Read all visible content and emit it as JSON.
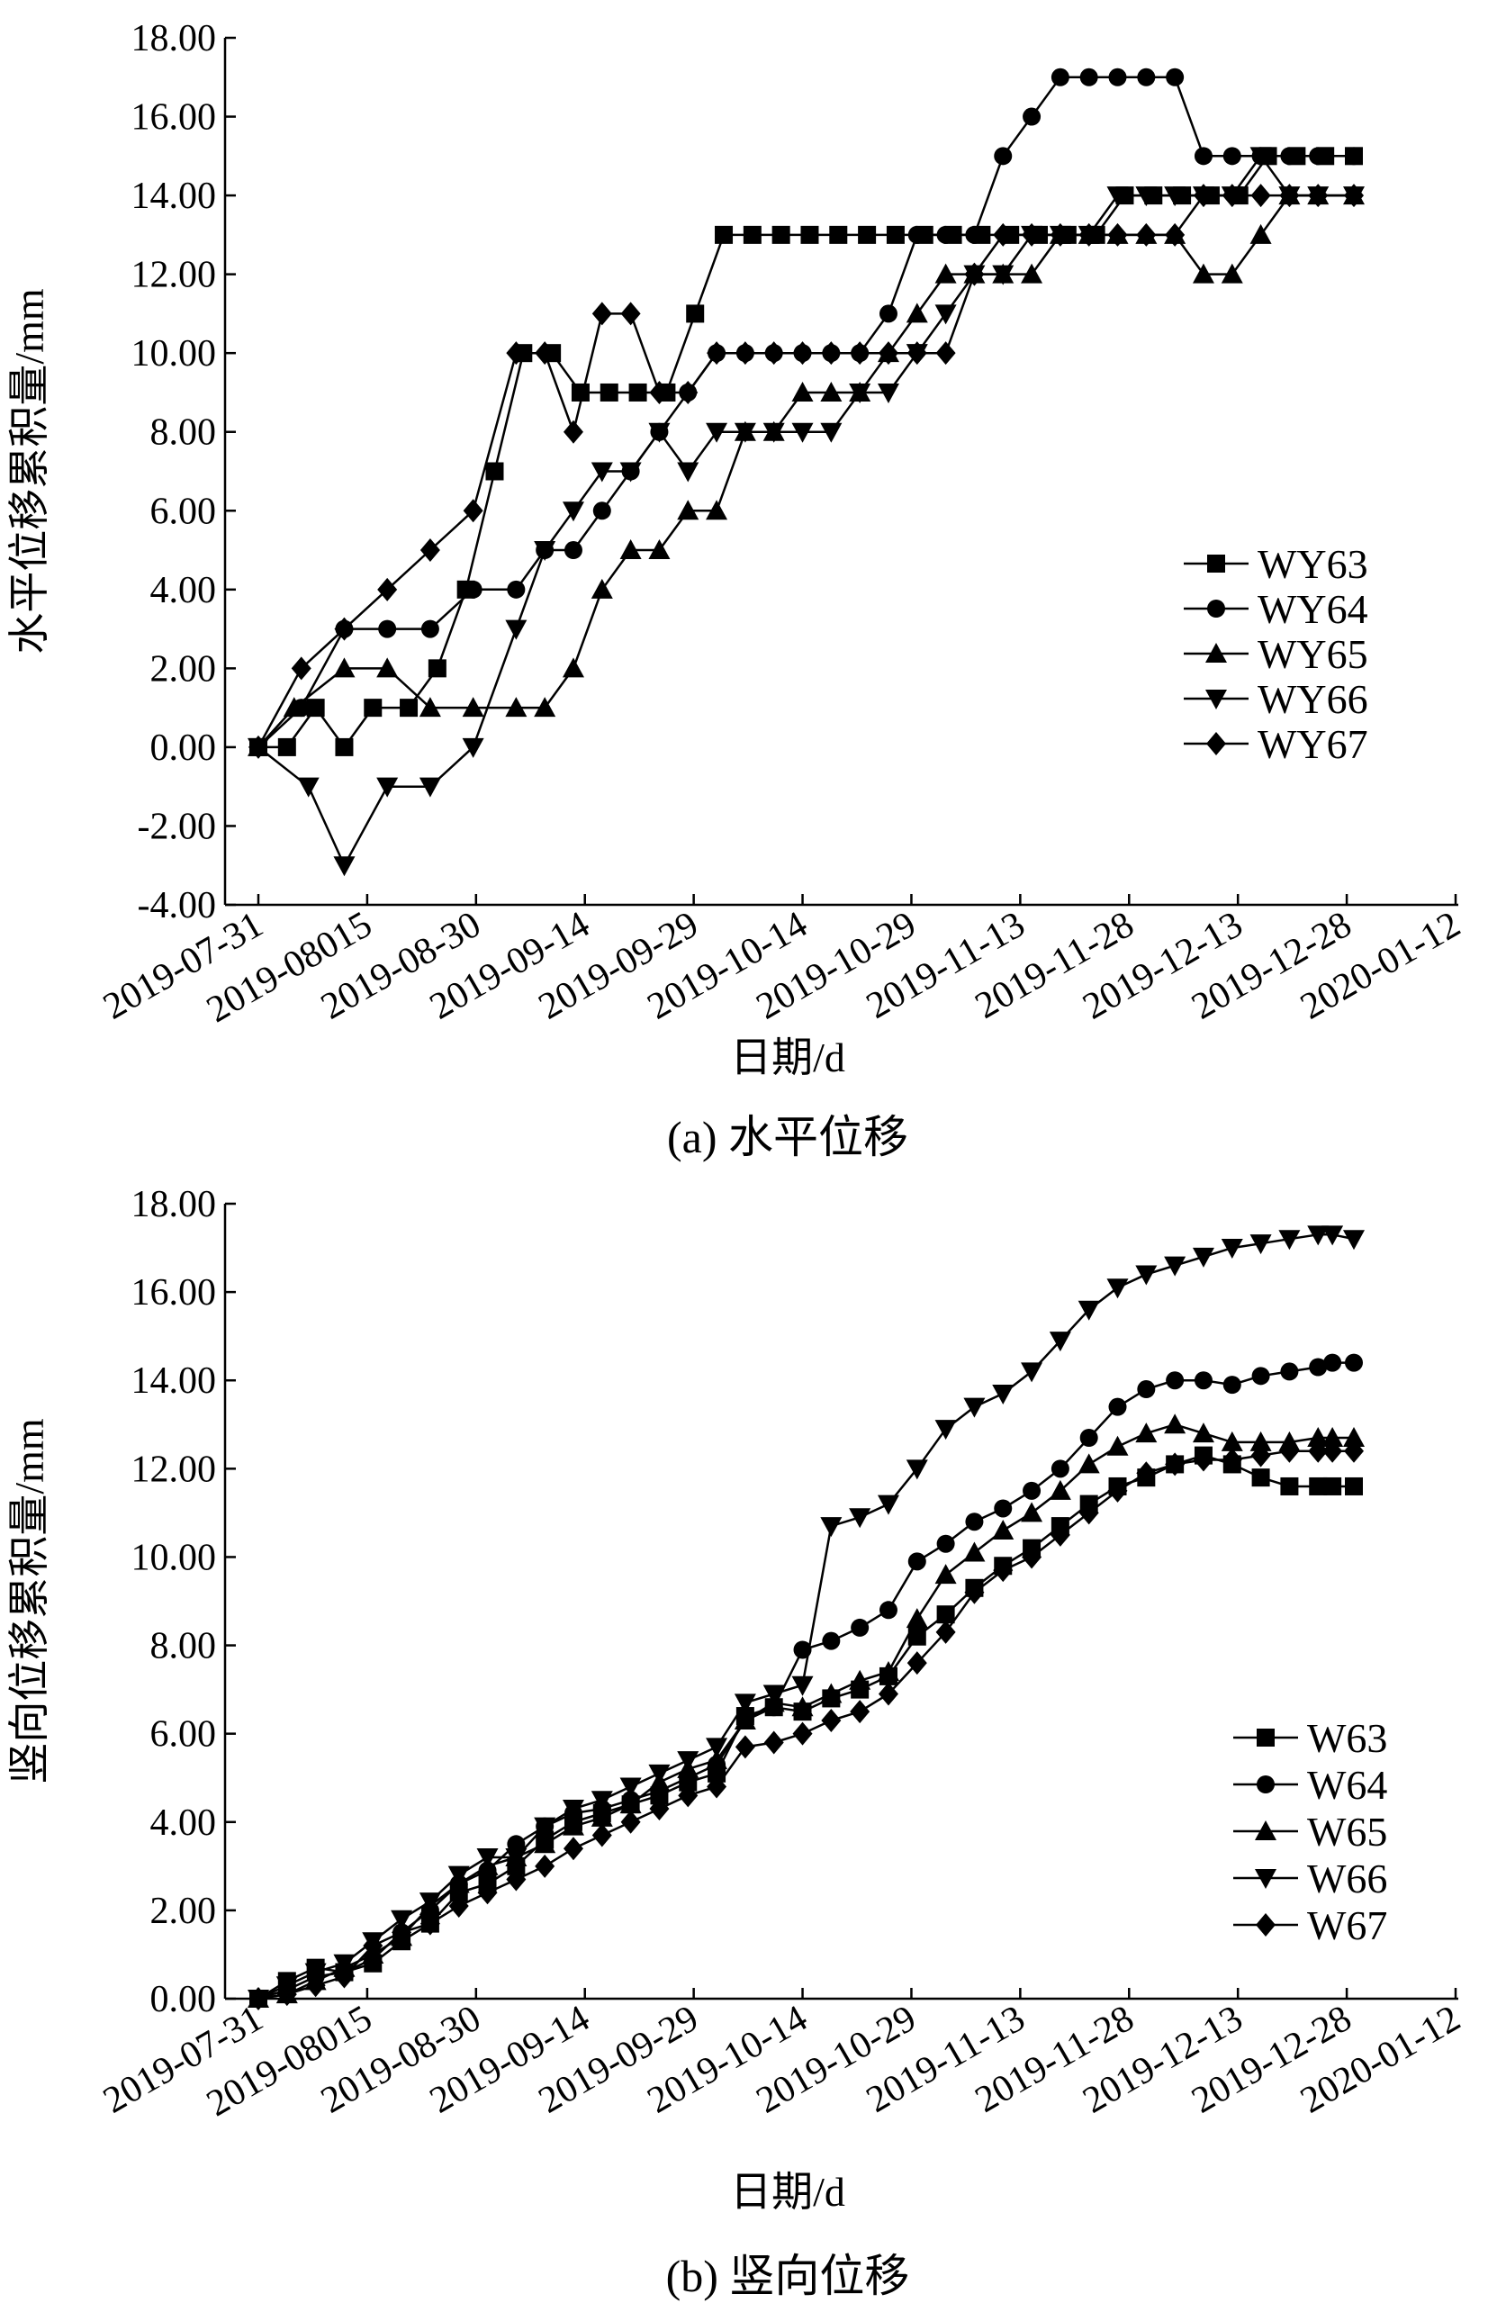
{
  "chart_data": [
    {
      "type": "line",
      "xlabel": "日期/d",
      "ylabel": "水平位移累积量/mm",
      "caption": "(a) 水平位移",
      "ylim": [
        -4,
        18
      ],
      "xlim": [
        "2019-07-31",
        "2020-01-12"
      ],
      "yticks": [
        "-4.00",
        "-2.00",
        "0.00",
        "2.00",
        "4.00",
        "6.00",
        "8.00",
        "10.00",
        "12.00",
        "14.00",
        "16.00",
        "18.00"
      ],
      "xticks": [
        "2019-07-31",
        "2019-08015",
        "2019-08-30",
        "2019-09-14",
        "2019-09-29",
        "2019-10-14",
        "2019-10-29",
        "2019-11-13",
        "2019-11-28",
        "2019-12-13",
        "2019-12-28",
        "2020-01-12"
      ],
      "legend_position": "right-middle",
      "series": [
        {
          "name": "WY63",
          "marker": "square",
          "x": [
            0,
            4,
            8,
            12,
            16,
            21,
            25,
            29,
            33,
            37,
            41,
            45,
            49,
            53,
            57,
            61,
            65,
            69,
            73,
            77,
            81,
            85,
            89,
            93,
            97,
            101,
            105,
            109,
            113,
            117,
            121,
            125,
            129,
            133,
            137,
            141,
            145,
            149,
            153
          ],
          "y": [
            0,
            0,
            1,
            0,
            1,
            1,
            2,
            4,
            7,
            10,
            10,
            9,
            9,
            9,
            9,
            11,
            13,
            13,
            13,
            13,
            13,
            13,
            13,
            13,
            13,
            13,
            13,
            13,
            13,
            13,
            14,
            14,
            14,
            14,
            14,
            15,
            15,
            15,
            15
          ]
        },
        {
          "name": "WY64",
          "marker": "circle",
          "x": [
            0,
            6,
            12,
            18,
            24,
            30,
            36,
            40,
            44,
            48,
            52,
            56,
            60,
            64,
            68,
            72,
            76,
            80,
            84,
            88,
            92,
            96,
            100,
            104,
            108,
            112,
            116,
            120,
            124,
            128,
            132,
            136,
            140,
            144,
            148,
            153
          ],
          "y": [
            0,
            1,
            3,
            3,
            3,
            4,
            4,
            5,
            5,
            6,
            7,
            8,
            9,
            10,
            10,
            10,
            10,
            10,
            10,
            11,
            13,
            13,
            13,
            15,
            16,
            17,
            17,
            17,
            17,
            17,
            15,
            15,
            15,
            15,
            15,
            15
          ]
        },
        {
          "name": "WY65",
          "marker": "triangle-up",
          "x": [
            0,
            5,
            12,
            18,
            24,
            30,
            36,
            40,
            44,
            48,
            52,
            56,
            60,
            64,
            68,
            72,
            76,
            80,
            84,
            88,
            92,
            96,
            100,
            104,
            108,
            112,
            116,
            120,
            124,
            128,
            132,
            136,
            140,
            144,
            148,
            153
          ],
          "y": [
            0,
            1,
            2,
            2,
            1,
            1,
            1,
            1,
            2,
            4,
            5,
            5,
            6,
            6,
            8,
            8,
            9,
            9,
            9,
            10,
            11,
            12,
            12,
            12,
            12,
            13,
            13,
            13,
            13,
            13,
            12,
            12,
            13,
            14,
            14,
            14
          ]
        },
        {
          "name": "WY66",
          "marker": "triangle-down",
          "x": [
            0,
            7,
            12,
            18,
            24,
            30,
            36,
            40,
            44,
            48,
            52,
            56,
            60,
            64,
            68,
            72,
            76,
            80,
            84,
            88,
            92,
            96,
            100,
            104,
            108,
            112,
            116,
            120,
            124,
            128,
            132,
            136,
            140,
            144,
            148,
            153
          ],
          "y": [
            0,
            -1,
            -3,
            -1,
            -1,
            0,
            3,
            5,
            6,
            7,
            7,
            8,
            7,
            8,
            8,
            8,
            8,
            8,
            9,
            9,
            10,
            11,
            12,
            12,
            13,
            13,
            13,
            14,
            14,
            14,
            14,
            14,
            15,
            14,
            14,
            14
          ]
        },
        {
          "name": "WY67",
          "marker": "diamond",
          "x": [
            0,
            6,
            12,
            18,
            24,
            30,
            36,
            40,
            44,
            48,
            52,
            56,
            60,
            64,
            68,
            72,
            76,
            80,
            84,
            88,
            92,
            96,
            100,
            104,
            108,
            112,
            116,
            120,
            124,
            128,
            132,
            136,
            140,
            144,
            148,
            153
          ],
          "y": [
            0,
            2,
            3,
            4,
            5,
            6,
            10,
            10,
            8,
            11,
            11,
            9,
            9,
            10,
            10,
            10,
            10,
            10,
            10,
            10,
            10,
            10,
            12,
            13,
            13,
            13,
            13,
            13,
            13,
            13,
            14,
            14,
            14,
            14,
            14,
            14
          ]
        }
      ]
    },
    {
      "type": "line",
      "xlabel": "日期/d",
      "ylabel": "竖向位移累积量/mm",
      "caption": "(b) 竖向位移",
      "ylim": [
        0,
        18
      ],
      "xlim": [
        "2019-07-31",
        "2020-01-12"
      ],
      "yticks": [
        "0.00",
        "2.00",
        "4.00",
        "6.00",
        "8.00",
        "10.00",
        "12.00",
        "14.00",
        "16.00",
        "18.00"
      ],
      "xticks": [
        "2019-07-31",
        "2019-08015",
        "2019-08-30",
        "2019-09-14",
        "2019-09-29",
        "2019-10-14",
        "2019-10-29",
        "2019-11-13",
        "2019-11-28",
        "2019-12-13",
        "2019-12-28",
        "2020-01-12"
      ],
      "legend_position": "right-middle",
      "series": [
        {
          "name": "W63",
          "marker": "square",
          "x": [
            0,
            4,
            8,
            12,
            16,
            20,
            24,
            28,
            32,
            36,
            40,
            44,
            48,
            52,
            56,
            60,
            64,
            68,
            72,
            76,
            80,
            84,
            88,
            92,
            96,
            100,
            104,
            108,
            112,
            116,
            120,
            124,
            128,
            132,
            136,
            140,
            144,
            148,
            150,
            153
          ],
          "y": [
            0,
            0.4,
            0.7,
            0.6,
            0.8,
            1.3,
            1.7,
            2.4,
            2.6,
            3.0,
            3.6,
            4.0,
            4.2,
            4.4,
            4.6,
            4.9,
            5.1,
            6.4,
            6.6,
            6.5,
            6.8,
            7.0,
            7.3,
            8.2,
            8.7,
            9.3,
            9.8,
            10.2,
            10.7,
            11.2,
            11.6,
            11.8,
            12.1,
            12.3,
            12.1,
            11.8,
            11.6,
            11.6,
            11.6,
            11.6
          ]
        },
        {
          "name": "W64",
          "marker": "circle",
          "x": [
            0,
            4,
            8,
            12,
            16,
            20,
            24,
            28,
            32,
            36,
            40,
            44,
            48,
            52,
            56,
            60,
            64,
            68,
            72,
            76,
            80,
            84,
            88,
            92,
            96,
            100,
            104,
            108,
            112,
            116,
            120,
            124,
            128,
            132,
            136,
            140,
            144,
            148,
            150,
            153
          ],
          "y": [
            0,
            0.2,
            0.5,
            0.6,
            0.9,
            1.5,
            2.0,
            2.6,
            2.9,
            3.5,
            3.9,
            4.2,
            4.3,
            4.5,
            4.7,
            5.0,
            5.3,
            6.3,
            6.6,
            7.9,
            8.1,
            8.4,
            8.8,
            9.9,
            10.3,
            10.8,
            11.1,
            11.5,
            12.0,
            12.7,
            13.4,
            13.8,
            14.0,
            14.0,
            13.9,
            14.1,
            14.2,
            14.3,
            14.4,
            14.4
          ]
        },
        {
          "name": "W65",
          "marker": "triangle-up",
          "x": [
            0,
            4,
            8,
            12,
            16,
            20,
            24,
            28,
            32,
            36,
            40,
            44,
            48,
            52,
            56,
            60,
            64,
            68,
            72,
            76,
            80,
            84,
            88,
            92,
            96,
            100,
            104,
            108,
            112,
            116,
            120,
            124,
            128,
            132,
            136,
            140,
            144,
            148,
            150,
            153
          ],
          "y": [
            0,
            0.1,
            0.4,
            0.7,
            1.0,
            1.4,
            2.1,
            2.6,
            3.0,
            3.2,
            3.5,
            3.9,
            4.1,
            4.4,
            4.9,
            5.2,
            5.4,
            6.3,
            6.7,
            6.6,
            6.9,
            7.2,
            7.4,
            8.6,
            9.6,
            10.1,
            10.6,
            11.0,
            11.5,
            12.1,
            12.5,
            12.8,
            13.0,
            12.8,
            12.6,
            12.6,
            12.6,
            12.7,
            12.7,
            12.7
          ]
        },
        {
          "name": "W66",
          "marker": "triangle-down",
          "x": [
            0,
            4,
            8,
            12,
            16,
            20,
            24,
            28,
            32,
            36,
            40,
            44,
            48,
            52,
            56,
            60,
            64,
            68,
            72,
            76,
            80,
            84,
            88,
            92,
            96,
            100,
            104,
            108,
            112,
            116,
            120,
            124,
            128,
            132,
            136,
            140,
            144,
            148,
            150,
            153
          ],
          "y": [
            0,
            0.3,
            0.6,
            0.8,
            1.3,
            1.8,
            2.2,
            2.8,
            3.2,
            3.2,
            3.9,
            4.3,
            4.5,
            4.8,
            5.1,
            5.4,
            5.7,
            6.7,
            6.9,
            7.1,
            10.7,
            10.9,
            11.2,
            12.0,
            12.9,
            13.4,
            13.7,
            14.2,
            14.9,
            15.6,
            16.1,
            16.4,
            16.6,
            16.8,
            17.0,
            17.1,
            17.2,
            17.3,
            17.3,
            17.2
          ]
        },
        {
          "name": "W67",
          "marker": "diamond",
          "x": [
            0,
            4,
            8,
            12,
            16,
            20,
            24,
            28,
            32,
            36,
            40,
            44,
            48,
            52,
            56,
            60,
            64,
            68,
            72,
            76,
            80,
            84,
            88,
            92,
            96,
            100,
            104,
            108,
            112,
            116,
            120,
            124,
            128,
            132,
            136,
            140,
            144,
            148,
            150,
            153
          ],
          "y": [
            0,
            0.1,
            0.3,
            0.5,
            1.2,
            1.5,
            1.7,
            2.1,
            2.4,
            2.7,
            3.0,
            3.4,
            3.7,
            4.0,
            4.3,
            4.6,
            4.8,
            5.7,
            5.8,
            6.0,
            6.3,
            6.5,
            6.9,
            7.6,
            8.3,
            9.2,
            9.7,
            10.0,
            10.5,
            11.0,
            11.5,
            11.9,
            12.1,
            12.2,
            12.2,
            12.3,
            12.4,
            12.4,
            12.4,
            12.4
          ]
        }
      ]
    }
  ]
}
